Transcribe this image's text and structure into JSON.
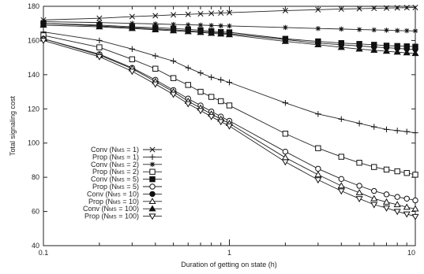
{
  "chart_data": {
    "type": "line",
    "xlabel": "Duration of getting on state (h)",
    "ylabel": "Total signaling cost",
    "x_scale": "log",
    "xlim": [
      0.1,
      10
    ],
    "ylim": [
      40,
      180
    ],
    "x_ticks": [
      "0.1",
      "1",
      "10"
    ],
    "y_ticks": [
      "40",
      "60",
      "80",
      "100",
      "120",
      "140",
      "160",
      "180"
    ],
    "grid": false,
    "legend_position": "bottom-left",
    "x": [
      0.1,
      0.2,
      0.3,
      0.4,
      0.5,
      0.6,
      0.7,
      0.8,
      0.9,
      1,
      2,
      3,
      4,
      5,
      6,
      7,
      8,
      9,
      10
    ],
    "series": [
      {
        "name": "Conv (N",
        "sub": "MS",
        "suffix": " = 1)",
        "marker": "x",
        "values": [
          172,
          173,
          174,
          174.5,
          175,
          175.3,
          175.6,
          175.9,
          176.1,
          176.3,
          177.5,
          178,
          178.4,
          178.6,
          178.8,
          179,
          179.1,
          179.2,
          179.3
        ]
      },
      {
        "name": "Prop (N",
        "sub": "MS",
        "suffix": " = 1)",
        "marker": "plus",
        "values": [
          165,
          160,
          155,
          151,
          148,
          144,
          141,
          138.5,
          137,
          135.5,
          123.5,
          117,
          114,
          111.5,
          109.5,
          108,
          107.3,
          106.7,
          106
        ]
      },
      {
        "name": "Conv (N",
        "sub": "MS",
        "suffix": " = 2)",
        "marker": "asterisk",
        "values": [
          171,
          170.5,
          170,
          169.7,
          169.4,
          169.2,
          169,
          168.8,
          168.6,
          168.5,
          167.6,
          167,
          166.7,
          166.4,
          166.2,
          166,
          165.8,
          165.7,
          165.6
        ]
      },
      {
        "name": "Prop (N",
        "sub": "MS",
        "suffix": " = 2)",
        "marker": "square-open",
        "values": [
          163,
          156,
          149,
          143.5,
          138,
          134,
          130,
          127,
          124.5,
          122,
          105.5,
          97,
          92,
          88.5,
          86,
          84.5,
          83.5,
          82.5,
          81.5
        ]
      },
      {
        "name": "Conv (N",
        "sub": "MS",
        "suffix": " = 5)",
        "marker": "square-filled",
        "values": [
          170,
          169,
          168,
          167.5,
          167,
          166.5,
          166,
          165.5,
          165,
          164.8,
          161,
          159.5,
          158.5,
          158,
          157.5,
          157,
          156.8,
          156.6,
          156.4
        ]
      },
      {
        "name": "Prop (N",
        "sub": "MS",
        "suffix": " = 5)",
        "marker": "circle-open",
        "values": [
          161,
          152,
          144,
          137,
          131,
          126,
          122,
          118.5,
          115.5,
          113,
          95,
          85,
          79,
          75,
          72,
          70,
          68.5,
          67.5,
          66.5
        ]
      },
      {
        "name": "Conv (N",
        "sub": "MS",
        "suffix": " = 10)",
        "marker": "circle-filled",
        "values": [
          170,
          168.5,
          167.5,
          166.8,
          166.2,
          165.7,
          165.2,
          164.8,
          164.3,
          164,
          160.5,
          158.5,
          157.5,
          156.8,
          156.2,
          155.8,
          155.4,
          155,
          154.8
        ]
      },
      {
        "name": "Prop (N",
        "sub": "MS",
        "suffix": " = 10)",
        "marker": "triangle-open",
        "values": [
          161,
          151.5,
          143.5,
          136,
          130,
          124.5,
          120.5,
          117,
          114,
          111.5,
          91.5,
          81.5,
          75,
          71,
          67.5,
          65.5,
          64,
          62.5,
          61.5
        ]
      },
      {
        "name": "Conv (N",
        "sub": "MS",
        "suffix": " = 100)",
        "marker": "triangle-filled",
        "values": [
          169,
          168,
          167,
          166.3,
          165.7,
          165.2,
          164.7,
          164.2,
          163.8,
          163.4,
          159.5,
          157.5,
          156,
          155,
          154.3,
          153.7,
          153.2,
          152.8,
          152.4
        ]
      },
      {
        "name": "Prop (N",
        "sub": "MS",
        "suffix": " = 100)",
        "marker": "triangle-down-open",
        "values": [
          160,
          150.5,
          142,
          134.5,
          128.5,
          123,
          119,
          115.5,
          112.5,
          110,
          89,
          78.5,
          72,
          67.5,
          64,
          62,
          60,
          58.5,
          57
        ]
      }
    ]
  }
}
